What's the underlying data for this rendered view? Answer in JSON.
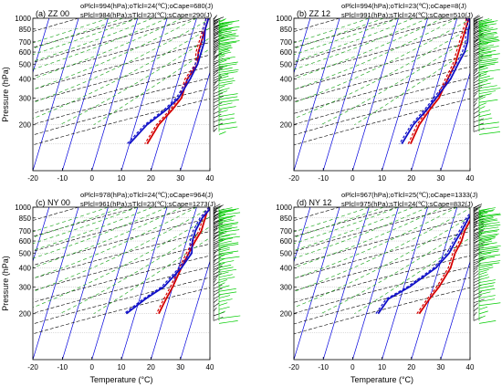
{
  "figure": {
    "ylabel": "Pressure (hPa)",
    "xlabel": "Temperature (°C)",
    "colors": {
      "observed": "#d40000",
      "simulated": "#1010c8",
      "isotherm": "#0000dd",
      "dry_adiabat": "#000000",
      "moist_adiabat": "#2aaa2a",
      "wind_obs": "#000000",
      "wind_sim": "#00cc00"
    }
  },
  "chart_data": [
    {
      "id": "zz00",
      "type": "line",
      "panel_label": "(a) ZZ 00",
      "stats_obs": "oPlcl=994(hPa);oTlcl=24(℃);oCape=680(J)",
      "stats_sim": "sPlcl=984(hPa);sTlcl=23(℃);sCape=290(J)",
      "xlim": [
        -20,
        40
      ],
      "ylim": [
        1000,
        100
      ],
      "yscale": "log",
      "x_ticks": [
        "-20",
        "-10",
        "0",
        "10",
        "20",
        "30",
        "40"
      ],
      "y_ticks": [
        "200",
        "300",
        "400",
        "500",
        "600",
        "700",
        "850",
        "1000"
      ],
      "y_tick_values": [
        200,
        300,
        400,
        500,
        600,
        700,
        850,
        1000
      ],
      "series": [
        {
          "role": "observed",
          "x": [
            24,
            24,
            24,
            24,
            24,
            25,
            23,
            23,
            21,
            18,
            16
          ],
          "y": [
            1000,
            925,
            850,
            700,
            600,
            500,
            400,
            300,
            250,
            200,
            150
          ]
        },
        {
          "role": "simulated",
          "x": [
            24,
            24,
            24,
            25,
            25,
            25,
            24,
            22,
            19,
            14,
            10
          ],
          "y": [
            1000,
            925,
            850,
            700,
            600,
            500,
            400,
            300,
            250,
            200,
            150
          ]
        }
      ]
    },
    {
      "id": "zz12",
      "type": "line",
      "panel_label": "(b) ZZ 12",
      "stats_obs": "oPlcl=994(hPa);oTlcl=23(℃);oCape=8(J)",
      "stats_sim": "sPlcl=991(hPa);sTlcl=24(℃);sCape=510(J)",
      "xlim": [
        -20,
        40
      ],
      "ylim": [
        1000,
        100
      ],
      "yscale": "log",
      "x_ticks": [
        "-20",
        "-10",
        "0",
        "10",
        "20",
        "30",
        "40"
      ],
      "y_ticks": [
        "200",
        "300",
        "400",
        "500",
        "600",
        "700",
        "850",
        "1000"
      ],
      "y_tick_values": [
        200,
        300,
        400,
        500,
        600,
        700,
        850,
        1000
      ],
      "series": [
        {
          "role": "observed",
          "x": [
            24,
            24,
            24,
            24,
            24,
            24,
            23,
            22,
            20,
            18,
            17
          ],
          "y": [
            1000,
            925,
            850,
            700,
            600,
            500,
            400,
            300,
            250,
            200,
            150
          ]
        },
        {
          "role": "simulated",
          "x": [
            24,
            25,
            25,
            26,
            26,
            25,
            24,
            21,
            19,
            16,
            14
          ],
          "y": [
            1000,
            925,
            850,
            700,
            600,
            500,
            400,
            300,
            250,
            200,
            150
          ]
        }
      ]
    },
    {
      "id": "ny00",
      "type": "line",
      "panel_label": "(c) NY 00",
      "stats_obs": "oPlcl=978(hPa);oTlcl=24(℃);oCape=964(J)",
      "stats_sim": "sPlcl=961(hPa);sTlcl=23(℃);sCape=1273(J)",
      "xlim": [
        -20,
        40
      ],
      "ylim": [
        1000,
        100
      ],
      "yscale": "log",
      "x_ticks": [
        "-20",
        "-10",
        "0",
        "10",
        "20",
        "30",
        "40"
      ],
      "y_ticks": [
        "200",
        "300",
        "400",
        "500",
        "600",
        "700",
        "850",
        "1000"
      ],
      "y_tick_values": [
        200,
        300,
        400,
        500,
        600,
        700,
        850,
        1000
      ],
      "series": [
        {
          "role": "observed",
          "x": [
            25,
            24,
            24,
            24,
            23,
            22,
            21,
            20,
            19,
            18
          ],
          "y": [
            1000,
            925,
            850,
            700,
            600,
            500,
            400,
            300,
            250,
            200
          ]
        },
        {
          "role": "simulated",
          "x": [
            25,
            24,
            23,
            22,
            22,
            23,
            21,
            17,
            12,
            7
          ],
          "y": [
            1000,
            925,
            850,
            700,
            600,
            500,
            400,
            300,
            250,
            200
          ]
        }
      ]
    },
    {
      "id": "ny12",
      "type": "line",
      "panel_label": "(d) NY 12",
      "stats_obs": "oPlcl=967(hPa);oTlcl=25(℃);oCape=1333(J)",
      "stats_sim": "sPlcl=975(hPa);sTlcl=24(℃);sCape=832(J)",
      "xlim": [
        -20,
        40
      ],
      "ylim": [
        1000,
        100
      ],
      "yscale": "log",
      "x_ticks": [
        "-20",
        "-10",
        "0",
        "10",
        "20",
        "30",
        "40"
      ],
      "y_ticks": [
        "200",
        "300",
        "400",
        "500",
        "600",
        "700",
        "850",
        "1000"
      ],
      "y_tick_values": [
        200,
        300,
        400,
        500,
        600,
        700,
        850,
        1000
      ],
      "series": [
        {
          "role": "observed",
          "x": [
            26,
            26,
            26,
            25,
            25,
            24,
            24,
            22,
            20,
            18
          ],
          "y": [
            1000,
            925,
            850,
            700,
            600,
            500,
            400,
            300,
            250,
            200
          ]
        },
        {
          "role": "simulated",
          "x": [
            27,
            26,
            25,
            24,
            23,
            22,
            19,
            12,
            6,
            4
          ],
          "y": [
            1000,
            925,
            850,
            700,
            600,
            500,
            400,
            300,
            250,
            200
          ]
        }
      ]
    }
  ]
}
